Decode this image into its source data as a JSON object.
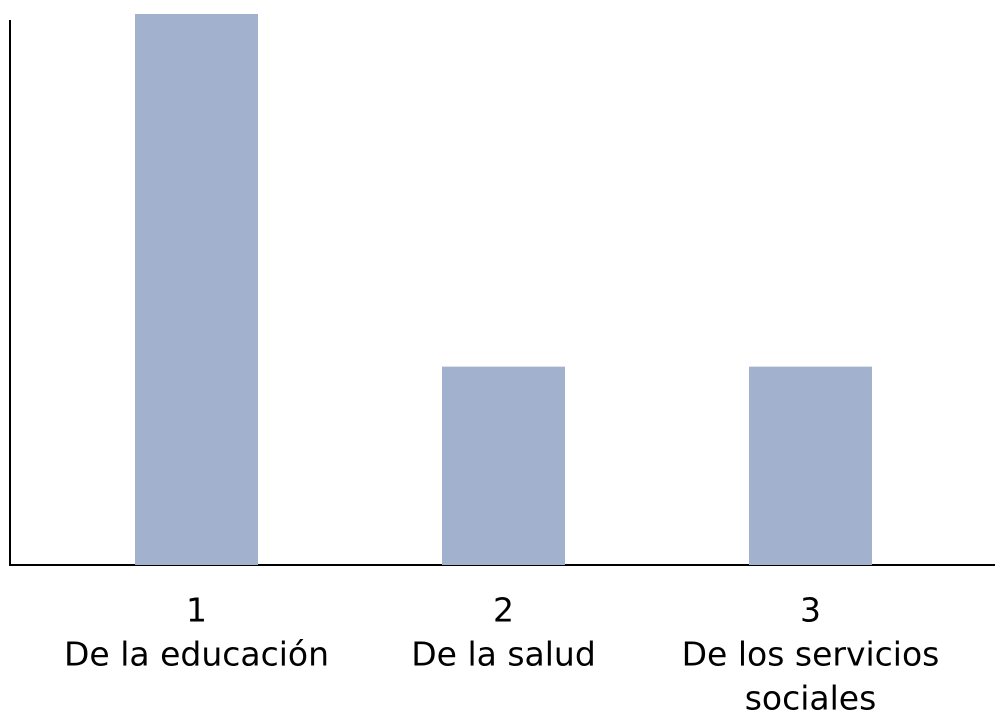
{
  "chart_data": {
    "type": "bar",
    "categories": [
      [
        "1",
        "De la educación"
      ],
      [
        "2",
        "De la salud"
      ],
      [
        "3",
        "De los servicios",
        "sociales"
      ]
    ],
    "values": [
      100,
      36,
      36
    ],
    "color": "#a2b1cd",
    "ylim": [
      0,
      100
    ]
  }
}
